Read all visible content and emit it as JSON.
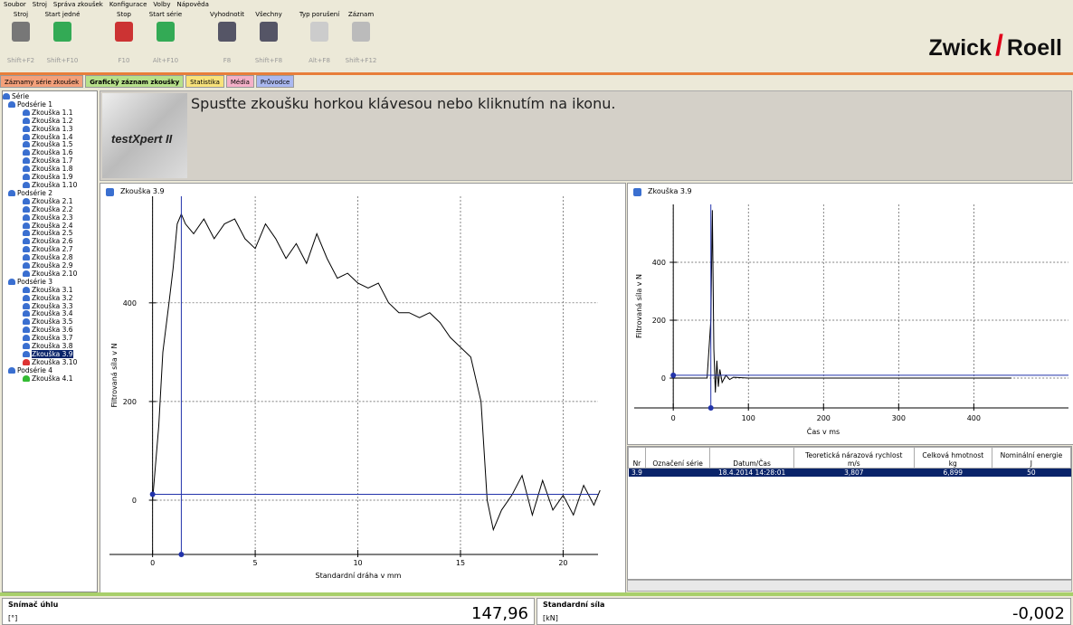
{
  "menu": [
    "Soubor",
    "Stroj",
    "Správa zkoušek",
    "Konfigurace",
    "Volby",
    "Nápověda"
  ],
  "toolbar": [
    {
      "label": "Stroj",
      "shortcut": "Shift+F2"
    },
    {
      "label": "Start jedné",
      "shortcut": "Shift+F10"
    },
    {
      "label": "Stop",
      "shortcut": "F10"
    },
    {
      "label": "Start série",
      "shortcut": "Alt+F10"
    },
    {
      "label": "Vyhodnotit",
      "shortcut": "F8"
    },
    {
      "label": "Všechny",
      "shortcut": "Shift+F8"
    },
    {
      "label": "Typ porušení",
      "shortcut": "Alt+F8"
    },
    {
      "label": "Záznam",
      "shortcut": "Shift+F12"
    }
  ],
  "logo": {
    "left": "Zwick",
    "right": "Roell"
  },
  "tabs": [
    "Záznamy série zkoušek",
    "Grafický záznam zkoušky",
    "Statistika",
    "Média",
    "Průvodce"
  ],
  "tree": {
    "root": "Série",
    "groups": [
      {
        "label": "Podsérie 1",
        "items": [
          "Zkouška 1.1",
          "Zkouška 1.2",
          "Zkouška 1.3",
          "Zkouška 1.4",
          "Zkouška 1.5",
          "Zkouška 1.6",
          "Zkouška 1.7",
          "Zkouška 1.8",
          "Zkouška 1.9",
          "Zkouška 1.10"
        ]
      },
      {
        "label": "Podsérie 2",
        "items": [
          "Zkouška 2.1",
          "Zkouška 2.2",
          "Zkouška 2.3",
          "Zkouška 2.4",
          "Zkouška 2.5",
          "Zkouška 2.6",
          "Zkouška 2.7",
          "Zkouška 2.8",
          "Zkouška 2.9",
          "Zkouška 2.10"
        ]
      },
      {
        "label": "Podsérie 3",
        "items": [
          "Zkouška 3.1",
          "Zkouška 3.2",
          "Zkouška 3.3",
          "Zkouška 3.4",
          "Zkouška 3.5",
          "Zkouška 3.6",
          "Zkouška 3.7",
          "Zkouška 3.8",
          "Zkouška 3.9",
          "Zkouška 3.10"
        ]
      },
      {
        "label": "Podsérie 4",
        "items": [
          "Zkouška 4.1"
        ]
      }
    ]
  },
  "banner": {
    "brand": "testXpert II",
    "message": "Spusťte zkoušku horkou klávesou nebo kliknutím na ikonu."
  },
  "chart_data": [
    {
      "type": "line",
      "title": "Zkouška 3.9",
      "x_label": "Standardní dráha v mm",
      "y_label": "Filtrovaná síla v N",
      "x": [
        0,
        0.3,
        0.5,
        0.8,
        1.0,
        1.2,
        1.4,
        1.6,
        2.0,
        2.5,
        3.0,
        3.5,
        4.0,
        4.5,
        5.0,
        5.5,
        6.0,
        6.5,
        7.0,
        7.5,
        8.0,
        8.5,
        9.0,
        9.5,
        10.0,
        10.5,
        11.0,
        11.5,
        12.0,
        12.5,
        13.0,
        13.5,
        14.0,
        14.5,
        15.0,
        15.5,
        16.0,
        16.3,
        16.6,
        17.0,
        17.5,
        18.0,
        18.5,
        19.0,
        19.5,
        20.0,
        20.5,
        21.0,
        21.5,
        21.8
      ],
      "values": [
        0,
        150,
        300,
        400,
        470,
        560,
        580,
        560,
        540,
        570,
        530,
        560,
        570,
        530,
        510,
        560,
        530,
        490,
        520,
        480,
        540,
        490,
        450,
        460,
        440,
        430,
        440,
        400,
        380,
        380,
        370,
        380,
        360,
        330,
        310,
        290,
        200,
        0,
        -60,
        -20,
        10,
        50,
        -30,
        40,
        -20,
        10,
        -30,
        30,
        -10,
        20
      ],
      "color": "#000000",
      "cursor": {
        "x": 1.4,
        "y": 12
      },
      "xlim": [
        -2.1,
        21.7
      ],
      "ylim": [
        -110,
        616
      ],
      "xticks": [
        0,
        5,
        10,
        15,
        20
      ],
      "yticks": [
        0,
        200,
        400
      ],
      "grid": true
    },
    {
      "type": "line",
      "title": "Zkouška 3.9",
      "x_label": "Čas v ms",
      "y_label": "Filtrovaná síla v N",
      "x": [
        0,
        45,
        50,
        52,
        54,
        56,
        58,
        60,
        62,
        65,
        70,
        75,
        80,
        100,
        450
      ],
      "values": [
        0,
        0,
        200,
        580,
        100,
        -50,
        60,
        -30,
        30,
        -15,
        10,
        -5,
        3,
        0,
        0
      ],
      "color": "#000000",
      "cursor": {
        "x": 50,
        "y": 10
      },
      "xlim": [
        -52,
        526
      ],
      "ylim": [
        -103,
        600
      ],
      "xticks": [
        0,
        100,
        200,
        300,
        400
      ],
      "yticks": [
        0,
        200,
        400
      ],
      "grid": true
    }
  ],
  "table": {
    "headers": [
      [
        "Nr"
      ],
      [
        "Označení série"
      ],
      [
        "Datum/Čas"
      ],
      [
        "Teoretická nárazová rychlost",
        "m/s"
      ],
      [
        "Celková hmotnost",
        "kg"
      ],
      [
        "Nominální energie",
        "J"
      ]
    ],
    "rows": [
      [
        "3.9",
        null,
        "18.4.2014 14:28:01",
        "3,807",
        "6,899",
        "50"
      ]
    ]
  },
  "status": [
    {
      "label": "Snímač úhlu",
      "unit": "[°]",
      "value": "147,96"
    },
    {
      "label": "Standardní síla",
      "unit": "[kN]",
      "value": "-0,002"
    }
  ]
}
